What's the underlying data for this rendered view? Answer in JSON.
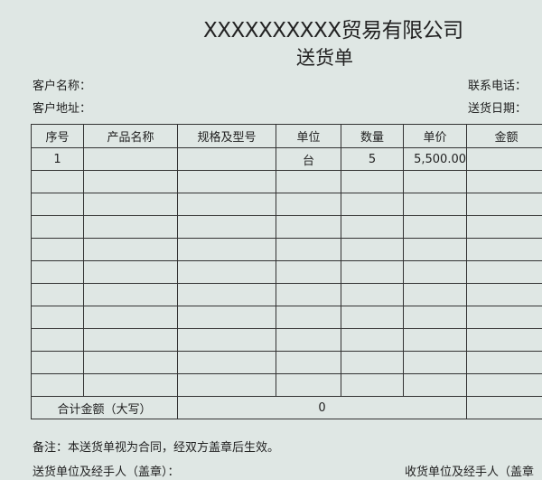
{
  "header": {
    "company": "XXXXXXXXXX贸易有限公司",
    "title": "送货单"
  },
  "info": {
    "customer_name": "客户名称：",
    "customer_address": "客户地址：",
    "phone": "联系电话：",
    "delivery_date": "送货日期："
  },
  "table": {
    "columns": [
      "序号",
      "产品名称",
      "规格及型号",
      "单位",
      "数量",
      "单价",
      "金额"
    ],
    "rows": [
      [
        "1",
        "",
        "",
        "台",
        "5",
        "5,500.00",
        ""
      ],
      [
        "",
        "",
        "",
        "",
        "",
        "",
        ""
      ],
      [
        "",
        "",
        "",
        "",
        "",
        "",
        ""
      ],
      [
        "",
        "",
        "",
        "",
        "",
        "",
        ""
      ],
      [
        "",
        "",
        "",
        "",
        "",
        "",
        ""
      ],
      [
        "",
        "",
        "",
        "",
        "",
        "",
        ""
      ],
      [
        "",
        "",
        "",
        "",
        "",
        "",
        ""
      ],
      [
        "",
        "",
        "",
        "",
        "",
        "",
        ""
      ],
      [
        "",
        "",
        "",
        "",
        "",
        "",
        ""
      ],
      [
        "",
        "",
        "",
        "",
        "",
        "",
        ""
      ],
      [
        "",
        "",
        "",
        "",
        "",
        "",
        ""
      ]
    ],
    "total_label": "合计金额（大写）",
    "total_value": "0",
    "total_amount": ""
  },
  "footer": {
    "note": "备注：本送货单视为合同，经双方盖章后生效。",
    "sender": "送货单位及经手人（盖章）：",
    "receiver": "收货单位及经手人（盖章"
  }
}
